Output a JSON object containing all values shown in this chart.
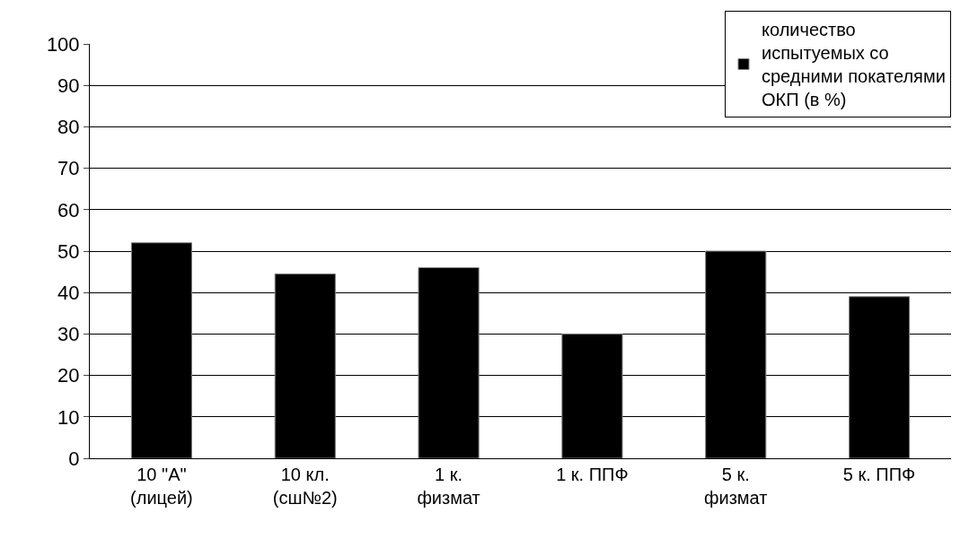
{
  "chart_data": {
    "type": "bar",
    "categories": [
      "10 \"А\"\n(лицей)",
      "10 кл.\n(сш№2)",
      "1 к.\nфизмат",
      "1 к. ППФ",
      "5 к.\nфизмат",
      "5 к. ППФ"
    ],
    "series": [
      {
        "name": "количество\nиспытуемых со\nсредними покателями\nОКП (в %)",
        "color": "#000000",
        "values": [
          52,
          44.5,
          46,
          30,
          50,
          39
        ]
      }
    ],
    "ylim": [
      0,
      100
    ],
    "yticks": [
      0,
      10,
      20,
      30,
      40,
      50,
      60,
      70,
      80,
      90,
      100
    ],
    "grid": "y",
    "legend": "top right"
  }
}
